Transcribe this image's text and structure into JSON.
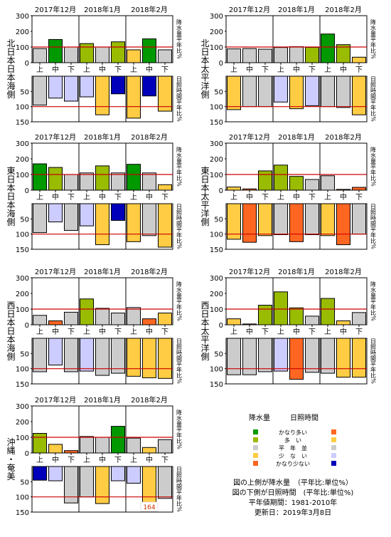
{
  "months": [
    "2017年12月",
    "2018年1月",
    "2018年2月"
  ],
  "periods": [
    "上",
    "中",
    "下"
  ],
  "ylabel_top": "降水量平年比%",
  "ylabel_bottom": "日照時間平年比%",
  "colors": {
    "much_more": "#009900",
    "more": "#99bb00",
    "normal": "#cccccc",
    "less": "#ffcc44",
    "much_less": "#ff6622",
    "sun_much_less": "#0000bb",
    "sun_less": "#ccccff",
    "normal_line": "#cc0000"
  },
  "chart_data": [
    {
      "type": "bar",
      "region": "北日本日本海側",
      "categories": [
        "2017年12月上",
        "2017年12月中",
        "2017年12月下",
        "2018年1月上",
        "2018年1月中",
        "2018年1月下",
        "2018年2月上",
        "2018年2月中",
        "2018年2月下"
      ],
      "series": [
        {
          "metric": "precipitation_ratio",
          "values": [
            90,
            148,
            100,
            122,
            100,
            133,
            82,
            152,
            82
          ],
          "classes": [
            "normal",
            "much_more",
            "normal",
            "more",
            "normal",
            "more",
            "less",
            "much_more",
            "normal"
          ]
        },
        {
          "metric": "sunshine_ratio",
          "values": [
            95,
            72,
            82,
            68,
            127,
            58,
            138,
            65,
            115
          ],
          "classes": [
            "normal",
            "sun_less",
            "sun_less",
            "sun_less",
            "less",
            "sun_much_less",
            "less",
            "sun_much_less",
            "less"
          ]
        }
      ],
      "ylim_top": [
        0,
        300
      ],
      "ylim_bottom": [
        150,
        0
      ]
    },
    {
      "type": "bar",
      "region": "北日本太平洋側",
      "categories": [
        "2017年12月上",
        "2017年12月中",
        "2017年12月下",
        "2018年1月上",
        "2018年1月中",
        "2018年1月下",
        "2018年2月上",
        "2018年2月中",
        "2018年2月下"
      ],
      "series": [
        {
          "metric": "precipitation_ratio",
          "values": [
            88,
            90,
            86,
            97,
            102,
            98,
            183,
            115,
            35
          ],
          "classes": [
            "normal",
            "normal",
            "normal",
            "normal",
            "normal",
            "more",
            "much_more",
            "more",
            "less"
          ]
        },
        {
          "metric": "sunshine_ratio",
          "values": [
            110,
            100,
            100,
            85,
            107,
            97,
            100,
            103,
            127
          ],
          "classes": [
            "less",
            "normal",
            "normal",
            "sun_less",
            "less",
            "sun_less",
            "normal",
            "normal",
            "less"
          ]
        }
      ],
      "ylim_top": [
        0,
        300
      ],
      "ylim_bottom": [
        150,
        0
      ]
    },
    {
      "type": "bar",
      "region": "東日本日本海側",
      "categories": [
        "2017年12月上",
        "2017年12月中",
        "2017年12月下",
        "2018年1月上",
        "2018年1月中",
        "2018年1月下",
        "2018年2月上",
        "2018年2月中",
        "2018年2月下"
      ],
      "series": [
        {
          "metric": "precipitation_ratio",
          "values": [
            168,
            145,
            100,
            110,
            155,
            110,
            165,
            110,
            35
          ],
          "classes": [
            "much_more",
            "more",
            "normal",
            "normal",
            "more",
            "normal",
            "much_more",
            "normal",
            "less"
          ]
        },
        {
          "metric": "sunshine_ratio",
          "values": [
            95,
            60,
            88,
            73,
            135,
            55,
            125,
            105,
            143
          ],
          "classes": [
            "normal",
            "sun_less",
            "normal",
            "sun_less",
            "less",
            "sun_much_less",
            "less",
            "normal",
            "less"
          ]
        }
      ],
      "ylim_top": [
        0,
        300
      ],
      "ylim_bottom": [
        150,
        0
      ]
    },
    {
      "type": "bar",
      "region": "東日本太平洋側",
      "categories": [
        "2017年12月上",
        "2017年12月中",
        "2017年12月下",
        "2018年1月上",
        "2018年1月中",
        "2018年1月下",
        "2018年2月上",
        "2018年2月中",
        "2018年2月下"
      ],
      "series": [
        {
          "metric": "precipitation_ratio",
          "values": [
            20,
            8,
            123,
            160,
            88,
            68,
            92,
            5,
            18
          ],
          "classes": [
            "less",
            "much_less",
            "more",
            "more",
            "more",
            "normal",
            "normal",
            "much_less",
            "much_less"
          ]
        },
        {
          "metric": "sunshine_ratio",
          "values": [
            117,
            127,
            105,
            102,
            125,
            102,
            105,
            135,
            100
          ],
          "classes": [
            "less",
            "much_less",
            "less",
            "normal",
            "much_less",
            "normal",
            "less",
            "much_less",
            "normal"
          ]
        }
      ],
      "ylim_top": [
        0,
        300
      ],
      "ylim_bottom": [
        150,
        0
      ]
    },
    {
      "type": "bar",
      "region": "西日本日本海側",
      "categories": [
        "2017年12月上",
        "2017年12月中",
        "2017年12月下",
        "2018年1月上",
        "2018年1月中",
        "2018年1月下",
        "2018年2月上",
        "2018年2月中",
        "2018年2月下"
      ],
      "series": [
        {
          "metric": "precipitation_ratio",
          "values": [
            60,
            25,
            80,
            165,
            105,
            75,
            110,
            38,
            75
          ],
          "classes": [
            "normal",
            "much_less",
            "normal",
            "more",
            "normal",
            "normal",
            "normal",
            "much_less",
            "less"
          ]
        },
        {
          "metric": "sunshine_ratio",
          "values": [
            110,
            88,
            110,
            108,
            122,
            115,
            125,
            130,
            132
          ],
          "classes": [
            "normal",
            "sun_less",
            "normal",
            "sun_less",
            "normal",
            "normal",
            "less",
            "less",
            "less"
          ]
        }
      ],
      "ylim_top": [
        0,
        300
      ],
      "ylim_bottom": [
        150,
        0
      ]
    },
    {
      "type": "bar",
      "region": "西日本太平洋側",
      "categories": [
        "2017年12月上",
        "2017年12月中",
        "2017年12月下",
        "2018年1月上",
        "2018年1月中",
        "2018年1月下",
        "2018年2月上",
        "2018年2月中",
        "2018年2月下"
      ],
      "series": [
        {
          "metric": "precipitation_ratio",
          "values": [
            38,
            5,
            125,
            210,
            108,
            55,
            168,
            25,
            78
          ],
          "classes": [
            "less",
            "much_less",
            "more",
            "more",
            "more",
            "normal",
            "more",
            "less",
            "normal"
          ]
        },
        {
          "metric": "sunshine_ratio",
          "values": [
            120,
            120,
            110,
            108,
            135,
            112,
            115,
            128,
            128
          ],
          "classes": [
            "normal",
            "normal",
            "normal",
            "sun_less",
            "much_less",
            "normal",
            "normal",
            "less",
            "less"
          ]
        }
      ],
      "ylim_top": [
        0,
        300
      ],
      "ylim_bottom": [
        150,
        0
      ]
    },
    {
      "type": "bar",
      "region": "沖縄・奄美",
      "categories": [
        "2017年12月上",
        "2017年12月中",
        "2017年12月下",
        "2018年1月上",
        "2018年1月中",
        "2018年1月下",
        "2018年2月上",
        "2018年2月中",
        "2018年2月下"
      ],
      "series": [
        {
          "metric": "precipitation_ratio",
          "values": [
            125,
            55,
            15,
            105,
            100,
            170,
            95,
            35,
            85
          ],
          "classes": [
            "more",
            "less",
            "much_less",
            "normal",
            "normal",
            "much_more",
            "normal",
            "less",
            "normal"
          ]
        },
        {
          "metric": "sunshine_ratio",
          "values": [
            45,
            47,
            120,
            100,
            122,
            47,
            55,
            164,
            105
          ],
          "classes": [
            "sun_much_less",
            "sun_less",
            "normal",
            "normal",
            "less",
            "sun_less",
            "sun_less",
            "less",
            "normal"
          ]
        }
      ],
      "ylim_top": [
        0,
        300
      ],
      "ylim_bottom": [
        150,
        0
      ],
      "annotations": [
        {
          "series": "sunshine_ratio",
          "index": 7,
          "text": "164"
        }
      ]
    }
  ],
  "legend": {
    "header_precip": "降水量",
    "header_sun": "日照時間",
    "items": [
      {
        "label": "かなり多い",
        "precip": "much_more",
        "sun": "much_less"
      },
      {
        "label": "多　い",
        "precip": "more",
        "sun": "less"
      },
      {
        "label": "平　年　並",
        "precip": "normal",
        "sun": "normal"
      },
      {
        "label": "少　な　い",
        "precip": "less",
        "sun": "sun_less"
      },
      {
        "label": "かなり少ない",
        "precip": "much_less",
        "sun": "sun_much_less"
      }
    ]
  },
  "notes": [
    "図の上側が降水量　（平年比:単位%）",
    "図の下側が日照時間　(平年比:単位%)",
    "平年値期間：1981-2010年",
    "更新日：2019年3月8日"
  ]
}
